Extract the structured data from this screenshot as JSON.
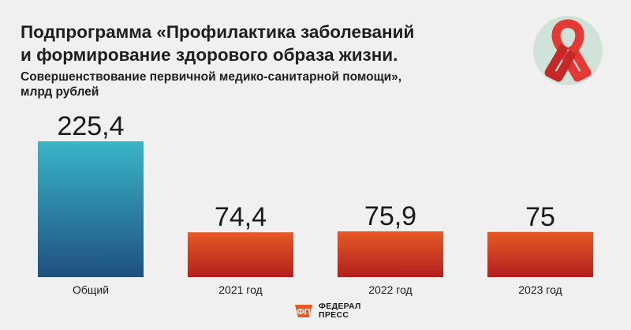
{
  "title_line1": "Подпрограмма «Профилактика заболеваний",
  "title_line2": "и формирование здорового образа жизни.",
  "subtitle_line1": "Совершенствование первичной медико-санитарной помощи»,",
  "subtitle_line2": "млрд рублей",
  "icon": "red-ribbon-icon",
  "publisher": {
    "line1": "ФЕДЕРАЛ",
    "line2": "ПРЕСС",
    "icon": "federalpress-logo-icon"
  },
  "colors": {
    "total_bar_top": "#3ab5c8",
    "total_bar_bottom": "#1f4f80",
    "year_bar_top": "#e65a24",
    "year_bar_bottom": "#b31f1f",
    "ribbon": "#e53935",
    "ribbon_circle": "#cfe3d9"
  },
  "chart_data": {
    "type": "bar",
    "categories": [
      "Общий",
      "2021 год",
      "2022 год",
      "2023 год"
    ],
    "values": [
      225.4,
      74.4,
      75.9,
      75
    ],
    "value_labels": [
      "225,4",
      "74,4",
      "75,9",
      "75"
    ],
    "unit": "млрд рублей",
    "grid": false,
    "legend": "none"
  }
}
